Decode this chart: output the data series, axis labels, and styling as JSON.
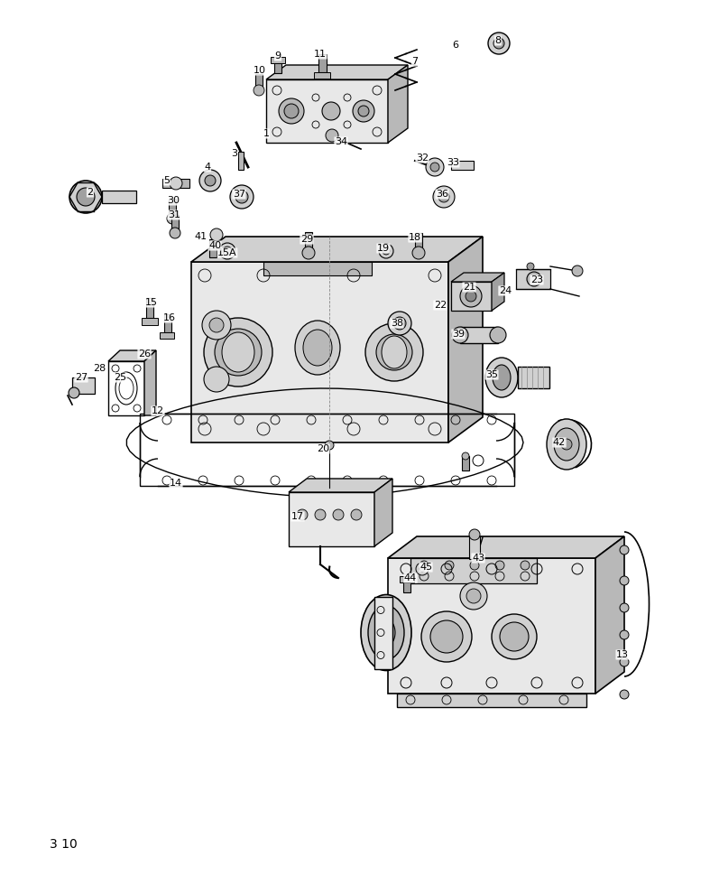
{
  "page_number": "3 10",
  "bg": "#ffffff",
  "fig_w": 7.87,
  "fig_h": 9.8,
  "dpi": 100,
  "labels": [
    [
      "1",
      295,
      148
    ],
    [
      "2",
      100,
      213
    ],
    [
      "3",
      260,
      170
    ],
    [
      "4",
      230,
      185
    ],
    [
      "5",
      185,
      200
    ],
    [
      "6",
      505,
      50
    ],
    [
      "7",
      460,
      68
    ],
    [
      "8",
      552,
      45
    ],
    [
      "9",
      308,
      62
    ],
    [
      "10",
      288,
      78
    ],
    [
      "11",
      355,
      60
    ],
    [
      "12",
      175,
      455
    ],
    [
      "13",
      690,
      725
    ],
    [
      "14",
      195,
      535
    ],
    [
      "15",
      168,
      335
    ],
    [
      "15A",
      252,
      280
    ],
    [
      "16",
      188,
      352
    ],
    [
      "17",
      330,
      572
    ],
    [
      "18",
      460,
      263
    ],
    [
      "19",
      425,
      275
    ],
    [
      "20",
      358,
      497
    ],
    [
      "21",
      520,
      318
    ],
    [
      "22",
      488,
      338
    ],
    [
      "23",
      595,
      310
    ],
    [
      "24",
      560,
      322
    ],
    [
      "25",
      133,
      418
    ],
    [
      "26",
      160,
      392
    ],
    [
      "27",
      90,
      418
    ],
    [
      "28",
      110,
      408
    ],
    [
      "29",
      340,
      265
    ],
    [
      "30",
      192,
      222
    ],
    [
      "31",
      193,
      238
    ],
    [
      "32",
      468,
      175
    ],
    [
      "33",
      502,
      180
    ],
    [
      "34",
      378,
      157
    ],
    [
      "35",
      545,
      415
    ],
    [
      "36",
      490,
      215
    ],
    [
      "37",
      265,
      215
    ],
    [
      "38",
      440,
      358
    ],
    [
      "39",
      508,
      370
    ],
    [
      "40",
      238,
      272
    ],
    [
      "41",
      222,
      262
    ],
    [
      "42",
      620,
      490
    ],
    [
      "43",
      530,
      618
    ],
    [
      "44",
      455,
      640
    ],
    [
      "45",
      472,
      628
    ]
  ],
  "lc": "#000000",
  "gray1": "#e8e8e8",
  "gray2": "#d0d0d0",
  "gray3": "#b8b8b8",
  "gray4": "#a0a0a0",
  "gray5": "#888888"
}
